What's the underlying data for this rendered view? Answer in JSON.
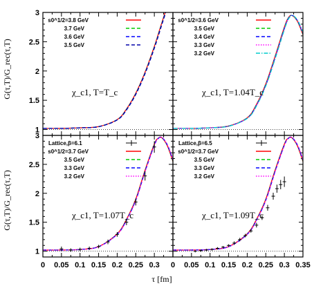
{
  "figure": {
    "xlabel": "τ [fm]",
    "ylabel_top": "G(τ,T)/G_rec(τ,T)",
    "ylabel_bottom": "G(τ,T)/G_rec(τ,T)"
  },
  "chart_data": [
    {
      "type": "line",
      "panel": "top-left",
      "annotation": "χ_c1, T=T_c",
      "xlim": [
        0,
        0.35
      ],
      "ylim": [
        0.9,
        3
      ],
      "reference_line": 1,
      "yticks": [
        "1",
        "1.5",
        "2",
        "2.5",
        "3"
      ],
      "legend": "top-left",
      "series": [
        {
          "name": "s0^1/2=3.8 GeV",
          "color": "#ff0000",
          "style": "solid"
        },
        {
          "name": "3.7 GeV",
          "color": "#00cc00",
          "style": "dashed"
        },
        {
          "name": "3.6 GeV",
          "color": "#0000ff",
          "style": "dashed"
        },
        {
          "name": "3.5 GeV",
          "color": "#0000aa",
          "style": "dashed"
        }
      ],
      "curve": {
        "x": [
          0.0,
          0.05,
          0.1,
          0.15,
          0.2,
          0.225,
          0.25,
          0.275,
          0.3,
          0.315,
          0.33
        ],
        "y": [
          1.02,
          1.02,
          1.03,
          1.05,
          1.17,
          1.35,
          1.62,
          1.98,
          2.42,
          2.72,
          3.02
        ]
      }
    },
    {
      "type": "line",
      "panel": "top-right",
      "annotation": "χ_c1, T=1.04T_c",
      "xlim": [
        0,
        0.35
      ],
      "ylim": [
        0.9,
        3
      ],
      "reference_line": 1,
      "legend": "top-left",
      "series": [
        {
          "name": "s0^1/2=3.6 GeV",
          "color": "#ff0000",
          "style": "solid"
        },
        {
          "name": "3.5 GeV",
          "color": "#00cc00",
          "style": "dashed"
        },
        {
          "name": "3.4 GeV",
          "color": "#0000ff",
          "style": "dashed"
        },
        {
          "name": "3.3 GeV",
          "color": "#ff00ff",
          "style": "dotted"
        },
        {
          "name": "3.2 GeV",
          "color": "#00cccc",
          "style": "dashdot"
        }
      ],
      "curve": {
        "x": [
          0.0,
          0.05,
          0.1,
          0.15,
          0.2,
          0.225,
          0.25,
          0.275,
          0.3,
          0.31,
          0.32,
          0.335,
          0.35
        ],
        "y": [
          1.02,
          1.02,
          1.03,
          1.06,
          1.2,
          1.43,
          1.78,
          2.25,
          2.75,
          2.9,
          2.95,
          2.85,
          2.62
        ]
      }
    },
    {
      "type": "line",
      "panel": "bottom-left",
      "annotation": "χ_c1, T=1.07T_c",
      "xlim": [
        0,
        0.35
      ],
      "ylim": [
        0.9,
        3
      ],
      "reference_line": 1,
      "xticks": [
        "0",
        "0.05",
        "0.1",
        "0.15",
        "0.2",
        "0.25",
        "0.3"
      ],
      "yticks": [
        "1",
        "1.5",
        "2",
        "2.5",
        "3"
      ],
      "legend": "top-left",
      "series": [
        {
          "name": "s0^1/2=3.7 GeV",
          "color": "#ff0000",
          "style": "solid"
        },
        {
          "name": "3.5 GeV",
          "color": "#00cc00",
          "style": "dashed"
        },
        {
          "name": "3.3 GeV",
          "color": "#0000ff",
          "style": "dashed"
        },
        {
          "name": "3.2 GeV",
          "color": "#ff00ff",
          "style": "dotted"
        }
      ],
      "lattice": {
        "name": "Lattice,β=6.1",
        "x": [
          0.05,
          0.075,
          0.1,
          0.125,
          0.15,
          0.175,
          0.2,
          0.225,
          0.25,
          0.275,
          0.3
        ],
        "y": [
          1.04,
          1.02,
          1.03,
          1.05,
          1.08,
          1.16,
          1.29,
          1.5,
          1.85,
          2.3,
          2.8
        ],
        "err": [
          0.04,
          0.03,
          0.03,
          0.03,
          0.03,
          0.04,
          0.04,
          0.05,
          0.06,
          0.08,
          0.1
        ]
      },
      "curve": {
        "x": [
          0.0,
          0.05,
          0.1,
          0.15,
          0.2,
          0.225,
          0.25,
          0.275,
          0.3,
          0.31,
          0.32,
          0.335,
          0.35
        ],
        "y": [
          1.02,
          1.02,
          1.03,
          1.08,
          1.3,
          1.55,
          1.9,
          2.4,
          2.85,
          2.95,
          2.96,
          2.82,
          2.55
        ]
      }
    },
    {
      "type": "line",
      "panel": "bottom-right",
      "annotation": "χ_c1, T=1.09T_c",
      "xlim": [
        0,
        0.35
      ],
      "ylim": [
        0.9,
        3
      ],
      "reference_line": 1,
      "xticks": [
        "0",
        "0.05",
        "0.1",
        "0.15",
        "0.2",
        "0.25",
        "0.3",
        "0.35"
      ],
      "legend": "top-left",
      "series": [
        {
          "name": "s0^1/2=3.7 GeV",
          "color": "#ff0000",
          "style": "solid"
        },
        {
          "name": "3.5 GeV",
          "color": "#00cc00",
          "style": "dashed"
        },
        {
          "name": "3.3 GeV",
          "color": "#0000ff",
          "style": "dashed"
        },
        {
          "name": "3.2 GeV",
          "color": "#ff00ff",
          "style": "dotted"
        }
      ],
      "lattice": {
        "name": "Lattice,β=6.5",
        "x": [
          0.06,
          0.075,
          0.09,
          0.105,
          0.12,
          0.135,
          0.15,
          0.165,
          0.18,
          0.195,
          0.21,
          0.225,
          0.24,
          0.255,
          0.27,
          0.28,
          0.29,
          0.3
        ],
        "y": [
          1.0,
          1.01,
          1.02,
          1.03,
          1.05,
          1.07,
          1.1,
          1.14,
          1.2,
          1.27,
          1.35,
          1.45,
          1.58,
          1.75,
          1.95,
          2.08,
          2.15,
          2.2
        ],
        "err": [
          0.02,
          0.02,
          0.02,
          0.02,
          0.02,
          0.02,
          0.02,
          0.03,
          0.03,
          0.03,
          0.03,
          0.04,
          0.04,
          0.05,
          0.06,
          0.07,
          0.08,
          0.09
        ]
      },
      "curve": {
        "x": [
          0.0,
          0.05,
          0.1,
          0.15,
          0.2,
          0.225,
          0.25,
          0.275,
          0.3,
          0.31,
          0.32,
          0.335,
          0.35
        ],
        "y": [
          1.02,
          1.02,
          1.03,
          1.08,
          1.3,
          1.55,
          1.9,
          2.4,
          2.85,
          2.95,
          2.96,
          2.82,
          2.55
        ]
      }
    }
  ]
}
